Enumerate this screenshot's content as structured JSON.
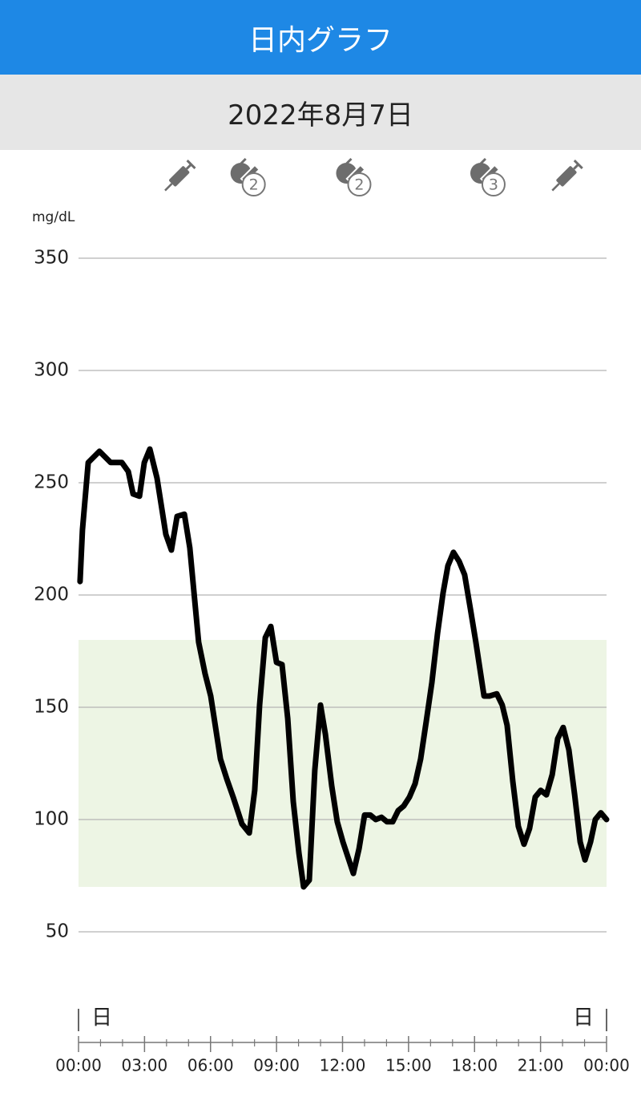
{
  "header": {
    "title": "日内グラフ"
  },
  "date": "2022年8月7日",
  "chart_data": {
    "type": "line",
    "y_label": "mg/dL",
    "color": "#000000",
    "target_range": [
      70,
      180
    ],
    "target_color": "#edf5e4",
    "grid": true,
    "xlim": [
      0,
      24
    ],
    "ylim": [
      50,
      350
    ],
    "yticks": [
      50,
      100,
      150,
      200,
      250,
      300,
      350
    ],
    "xticks": [
      {
        "value": 0,
        "label": "00:00"
      },
      {
        "value": 3,
        "label": "03:00"
      },
      {
        "value": 6,
        "label": "06:00"
      },
      {
        "value": 9,
        "label": "09:00"
      },
      {
        "value": 12,
        "label": "12:00"
      },
      {
        "value": 15,
        "label": "15:00"
      },
      {
        "value": 18,
        "label": "18:00"
      },
      {
        "value": 21,
        "label": "21:00"
      },
      {
        "value": 24,
        "label": "00:00"
      }
    ],
    "xminorticks": [
      1,
      2,
      4,
      5,
      7,
      8,
      10,
      11,
      13,
      14,
      16,
      17,
      19,
      20,
      22,
      23
    ],
    "day_markers": [
      {
        "x": 0,
        "label": "日"
      },
      {
        "x": 24,
        "label": "日"
      }
    ],
    "events": [
      {
        "x": 4.5,
        "type": "insulin"
      },
      {
        "x": 7.6,
        "type": "meal",
        "count": 2
      },
      {
        "x": 12.4,
        "type": "meal",
        "count": 2
      },
      {
        "x": 18.5,
        "type": "meal",
        "count": 3
      },
      {
        "x": 22.1,
        "type": "insulin"
      }
    ],
    "x": [
      0.07,
      0.18,
      0.44,
      0.95,
      1.46,
      1.97,
      2.26,
      2.48,
      2.77,
      2.99,
      3.24,
      3.57,
      3.97,
      4.22,
      4.48,
      4.81,
      5.06,
      5.46,
      5.75,
      6.01,
      6.45,
      6.74,
      7.03,
      7.43,
      7.76,
      8.01,
      8.23,
      8.49,
      8.74,
      9.0,
      9.25,
      9.51,
      9.76,
      10.02,
      10.23,
      10.49,
      10.74,
      11.0,
      11.22,
      11.51,
      11.76,
      12.02,
      12.49,
      12.75,
      13.0,
      13.26,
      13.51,
      13.77,
      14.02,
      14.28,
      14.53,
      14.78,
      15.04,
      15.3,
      15.55,
      15.81,
      16.06,
      16.32,
      16.57,
      16.79,
      17.04,
      17.3,
      17.55,
      17.81,
      18.06,
      18.43,
      18.68,
      19.01,
      19.26,
      19.48,
      19.74,
      19.99,
      20.25,
      20.5,
      20.76,
      21.01,
      21.27,
      21.53,
      21.78,
      22.03,
      22.29,
      22.55,
      22.8,
      23.02,
      23.27,
      23.49,
      23.74,
      24.0
    ],
    "values": [
      206,
      229,
      259,
      264,
      259,
      259,
      255,
      245,
      244,
      259,
      265,
      252,
      227,
      220,
      235,
      236,
      221,
      179,
      165,
      155,
      127,
      118,
      110,
      98,
      94,
      113,
      151,
      181,
      186,
      170,
      169,
      145,
      108,
      85,
      70,
      73,
      122,
      151,
      138,
      115,
      99,
      90,
      76,
      87,
      102,
      102,
      100,
      101,
      99,
      99,
      104,
      106,
      110,
      116,
      127,
      144,
      161,
      183,
      201,
      213,
      219,
      215,
      209,
      194,
      179,
      155,
      155,
      156,
      151,
      142,
      117,
      97,
      89,
      96,
      110,
      113,
      111,
      120,
      136,
      141,
      131,
      111,
      90,
      82,
      90,
      100,
      103,
      100
    ]
  }
}
